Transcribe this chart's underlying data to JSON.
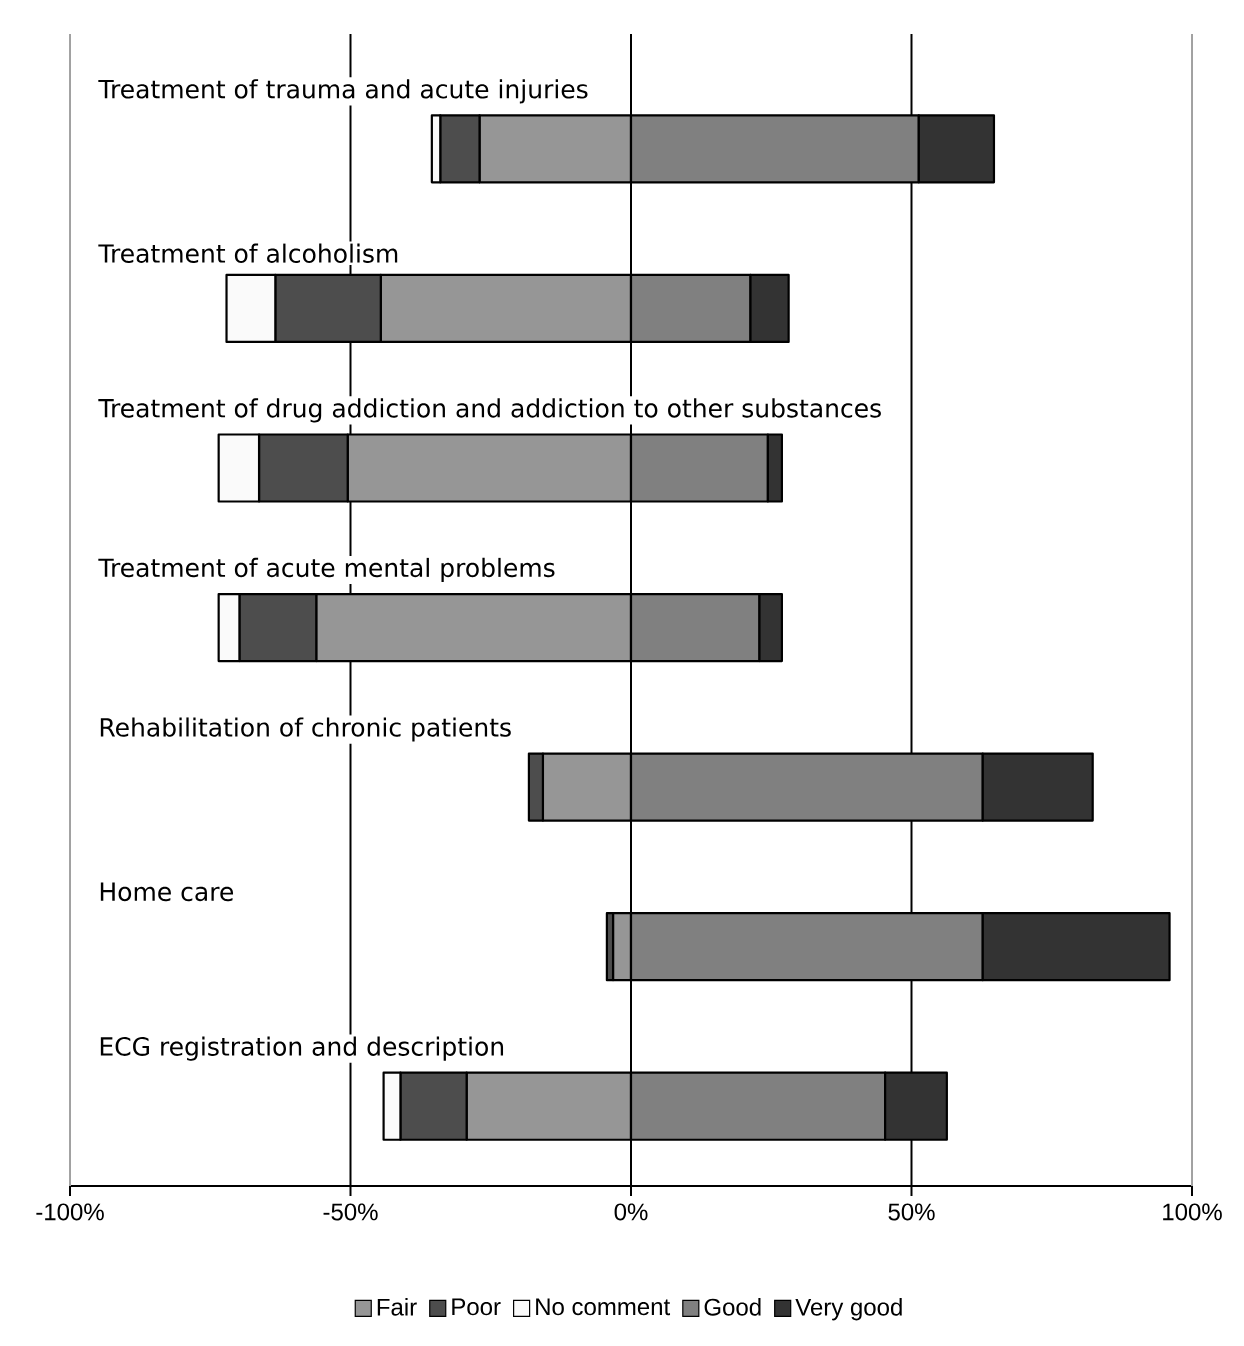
{
  "chart_data": {
    "type": "bar",
    "orientation": "horizontal",
    "stacked": true,
    "categories": [
      "Treatment of trauma and acute injuries",
      "Treatment of alcoholism",
      "Treatment of drug addiction and addiction to other substances",
      "Treatment of acute mental problems",
      "Rehabilitation of chronic patients",
      "Home care",
      "ECG registration and description"
    ],
    "series": [
      {
        "name": "Fair",
        "color": "#969696",
        "values": [
          -27,
          -44.6,
          -50.5,
          -56.1,
          -15.7,
          -3.2,
          -29.3
        ]
      },
      {
        "name": "Poor",
        "color": "#4d4d4d",
        "values": [
          -7,
          -18.8,
          -15.8,
          -13.7,
          -2.5,
          -1.1,
          -11.8
        ]
      },
      {
        "name": "No comment",
        "color": "#fafafa",
        "values": [
          -1.5,
          -8.7,
          -7.2,
          -3.7,
          0,
          0,
          -3
        ]
      },
      {
        "name": "Good",
        "color": "#808080",
        "values": [
          51.3,
          21.3,
          24.4,
          22.9,
          62.7,
          62.7,
          45.3
        ]
      },
      {
        "name": "Very good",
        "color": "#333333",
        "values": [
          13.4,
          6.8,
          2.5,
          4,
          19.6,
          33.3,
          11
        ]
      }
    ],
    "xlim": [
      -100,
      100
    ],
    "xticks": [
      {
        "value": -100,
        "label": "-100%"
      },
      {
        "value": -50,
        "label": "-50%"
      },
      {
        "value": 0,
        "label": "0%"
      },
      {
        "value": 50,
        "label": "50%"
      },
      {
        "value": 100,
        "label": "100%"
      }
    ],
    "grid": "x",
    "legend": "bottom"
  }
}
